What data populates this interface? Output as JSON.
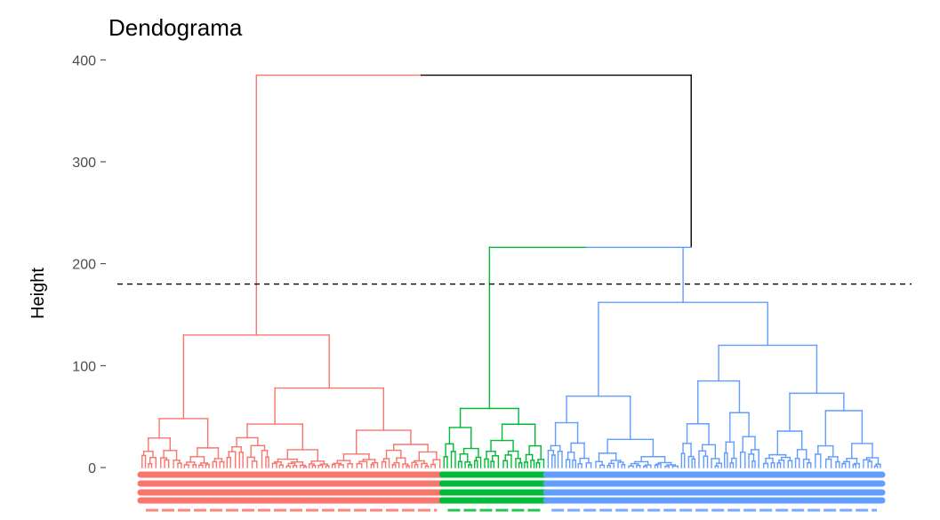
{
  "chart_data": {
    "type": "dendrogram",
    "title": "Dendograma",
    "xlabel": "",
    "ylabel": "Height",
    "ylim": [
      -20,
      410
    ],
    "yticks": [
      0,
      100,
      200,
      300,
      400
    ],
    "cut_height": 180,
    "k": 3,
    "colors": {
      "cluster1": "#F8766D",
      "cluster2": "#00BA38",
      "cluster3": "#619CFF",
      "above_cut": "#000000",
      "cut_line": "#000000"
    },
    "clusters": [
      {
        "name": "cluster1",
        "color": "#F8766D",
        "top_height": 130,
        "leaf_span": [
          0,
          0.407
        ]
      },
      {
        "name": "cluster2",
        "color": "#00BA38",
        "top_height": 58,
        "leaf_span": [
          0.407,
          0.547
        ]
      },
      {
        "name": "cluster3",
        "color": "#619CFF",
        "top_height": 162,
        "leaf_span": [
          0.547,
          1.0
        ]
      }
    ],
    "merges": [
      {
        "height": 385,
        "color": "#000000",
        "join": [
          "cluster1",
          "c23"
        ]
      },
      {
        "height": 216,
        "color": "#000000",
        "join": [
          "cluster2",
          "cluster3"
        ]
      }
    ]
  }
}
